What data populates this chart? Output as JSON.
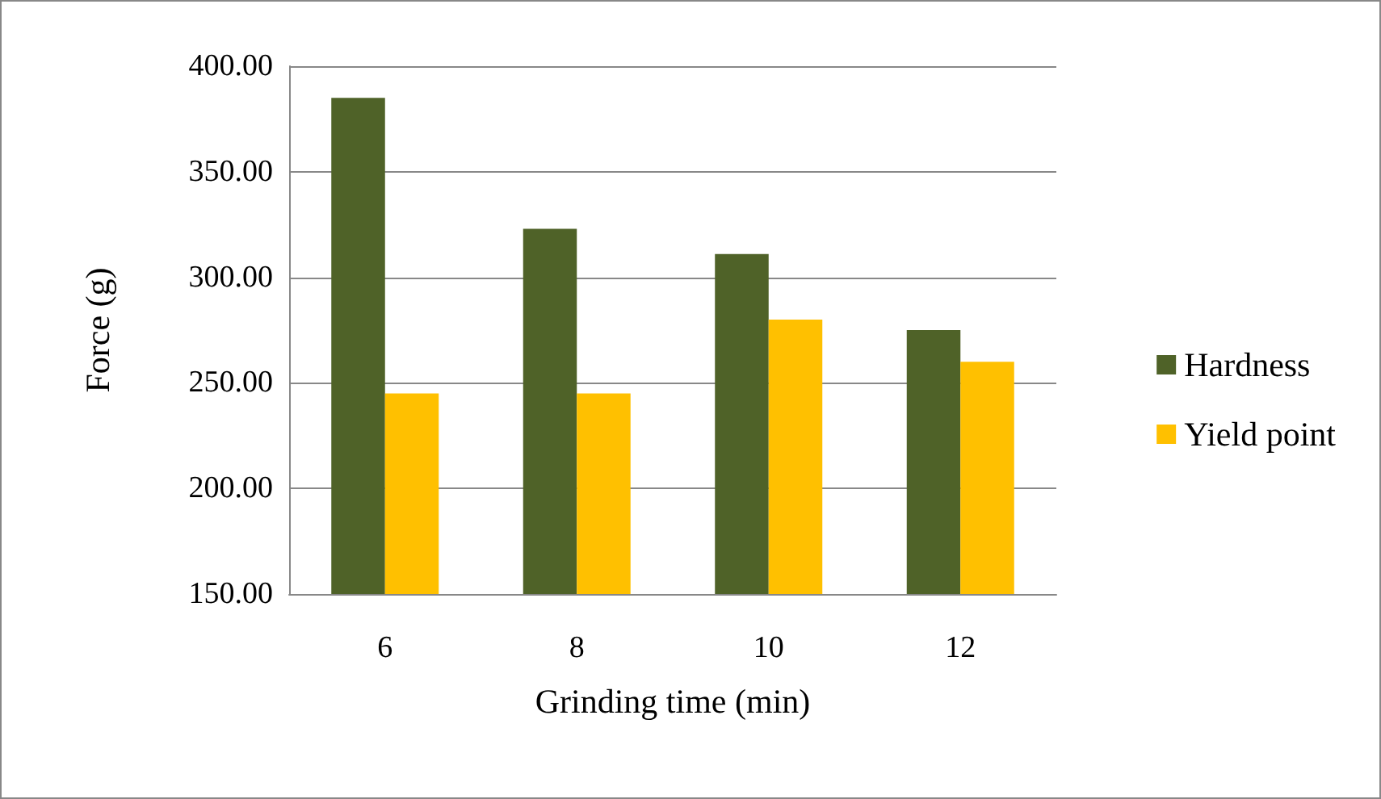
{
  "chart_data": {
    "type": "bar",
    "xlabel": "Grinding time (min)",
    "ylabel": "Force (g)",
    "categories": [
      "6",
      "8",
      "10",
      "12"
    ],
    "series": [
      {
        "name": "Hardness",
        "color": "#4f6228",
        "values": [
          385,
          323,
          311,
          275
        ]
      },
      {
        "name": "Yield point",
        "color": "#ffc000",
        "values": [
          245,
          245,
          280,
          260
        ]
      }
    ],
    "ylim": [
      150,
      400
    ],
    "yticks": [
      {
        "value": 150,
        "label": "150.00"
      },
      {
        "value": 200,
        "label": "200.00"
      },
      {
        "value": 250,
        "label": "250.00"
      },
      {
        "value": 300,
        "label": "300.00"
      },
      {
        "value": 350,
        "label": "350.00"
      },
      {
        "value": 400,
        "label": "400.00"
      }
    ],
    "grid": "y",
    "legend": "right"
  }
}
